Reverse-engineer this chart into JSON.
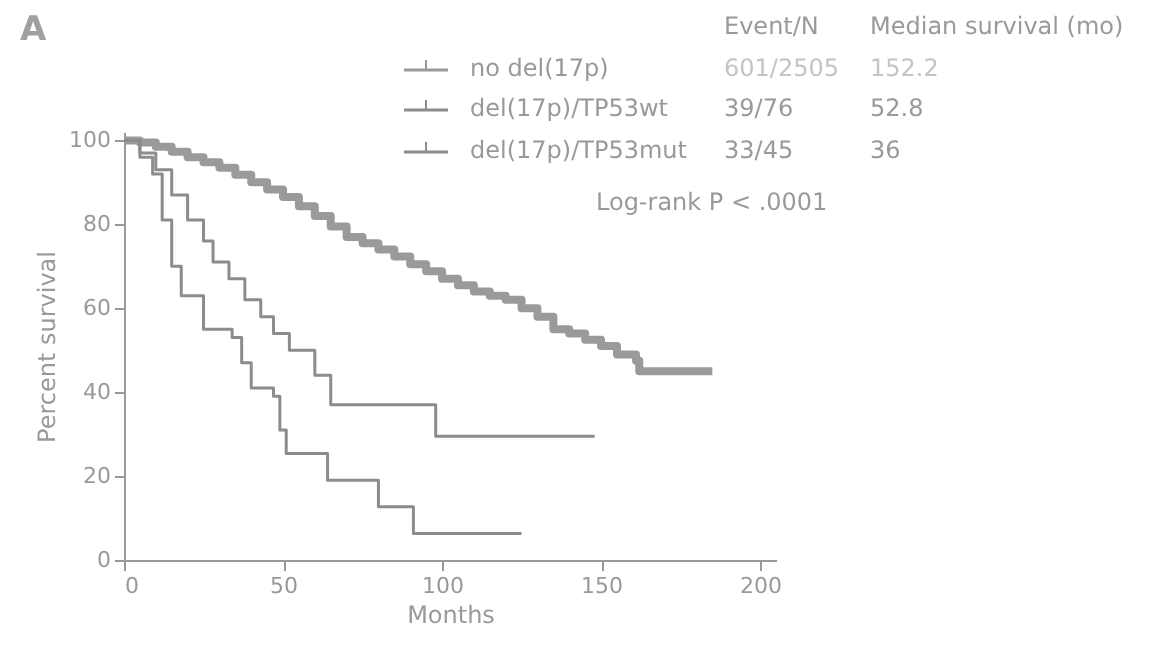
{
  "chart_data": {
    "type": "step",
    "title": "A",
    "xlabel": "Months",
    "ylabel": "Percent survival",
    "xlim": [
      0,
      205
    ],
    "ylim": [
      0,
      102
    ],
    "xticks": [
      0,
      50,
      100,
      150,
      200
    ],
    "yticks": [
      0,
      20,
      40,
      60,
      80,
      100
    ],
    "grid": false,
    "legend": "top right",
    "marker": "none",
    "line_style": "solid",
    "annotations": [
      "Event/N",
      "Median survival (mo)",
      "601/2505",
      "152.2",
      "39/76",
      "52.8",
      "33/45",
      "36",
      "Log-rank P < .0001"
    ],
    "series": [
      {
        "name": "no del(17p)",
        "color": "#9a9a9a",
        "x": [
          0,
          5,
          10,
          15,
          20,
          25,
          30,
          35,
          40,
          45,
          50,
          55,
          60,
          65,
          70,
          75,
          80,
          85,
          90,
          95,
          100,
          105,
          110,
          115,
          120,
          125,
          130,
          135,
          140,
          145,
          150,
          155,
          161,
          162,
          185
        ],
        "values": [
          100,
          99.5,
          98.5,
          97.3,
          96,
          94.8,
          93.5,
          91.8,
          90,
          88.3,
          86.5,
          84.3,
          82,
          79.5,
          77,
          75.5,
          74,
          72.3,
          70.5,
          68.8,
          67,
          65.5,
          64,
          63,
          62,
          60,
          58,
          55,
          54,
          52.5,
          51,
          49,
          47.5,
          45,
          45
        ]
      },
      {
        "name": "del(17p)/TP53wt",
        "color": "#8c8c8c",
        "x": [
          0,
          5,
          10,
          15,
          20,
          25,
          28,
          33,
          38,
          43,
          47,
          52,
          60,
          65,
          98,
          148
        ],
        "values": [
          100,
          97,
          93,
          87,
          81,
          76,
          71,
          67,
          62,
          58,
          54,
          50,
          44,
          37,
          29.5,
          29.5
        ]
      },
      {
        "name": "del(17p)/TP53mut",
        "color": "#8c8c8c",
        "x": [
          0,
          5,
          9,
          12,
          15,
          18,
          25,
          34,
          37,
          40,
          47,
          49,
          51,
          64,
          80,
          91,
          125
        ],
        "values": [
          100,
          96,
          92,
          81,
          70,
          63,
          55,
          53,
          47,
          41,
          39,
          31,
          25.4,
          19,
          12.7,
          6.3,
          6.3
        ]
      }
    ]
  }
}
